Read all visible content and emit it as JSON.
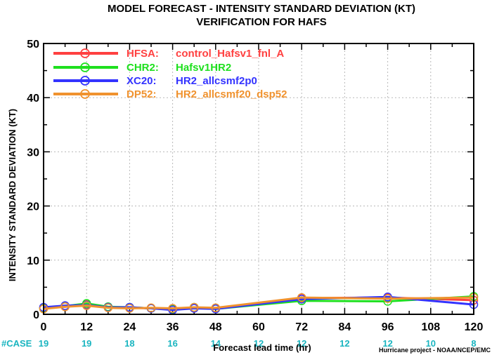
{
  "chart_data": {
    "type": "line",
    "title": "MODEL FORECAST - INTENSITY STANDARD DEVIATION (KT)",
    "subtitle": "VERIFICATION FOR HAFS",
    "xlabel": "Forecast lead time (hr)",
    "ylabel": "INTENSITY STANDARD DEVIATION (KT)",
    "xlim": [
      0,
      120
    ],
    "ylim": [
      0,
      50
    ],
    "x_ticks": [
      "0",
      "12",
      "24",
      "36",
      "48",
      "60",
      "72",
      "84",
      "96",
      "108",
      "120"
    ],
    "y_ticks": [
      "0",
      "10",
      "20",
      "30",
      "40",
      "50"
    ],
    "grid": true,
    "legend_position": "top-left",
    "case_label": "#CASE",
    "case_counts": [
      {
        "x": 0,
        "n": "19"
      },
      {
        "x": 12,
        "n": "19"
      },
      {
        "x": 24,
        "n": "18"
      },
      {
        "x": 36,
        "n": "16"
      },
      {
        "x": 48,
        "n": "14"
      },
      {
        "x": 60,
        "n": "12"
      },
      {
        "x": 72,
        "n": "12"
      },
      {
        "x": 84,
        "n": "12"
      },
      {
        "x": 96,
        "n": "12"
      },
      {
        "x": 108,
        "n": "10"
      },
      {
        "x": 120,
        "n": "8"
      }
    ],
    "credit": "Hurricane project - NOAA/NCEP/EMC",
    "series": [
      {
        "name": "HFSA:",
        "desc": "control_Hafsv1_fnl_A",
        "color": "#ff4040",
        "x": [
          0,
          6,
          12,
          18,
          24,
          30,
          36,
          42,
          48,
          72,
          96,
          120
        ],
        "y": [
          1.2,
          1.4,
          1.8,
          1.3,
          1.2,
          1.1,
          1.0,
          1.2,
          1.1,
          3.0,
          3.1,
          2.6
        ]
      },
      {
        "name": "CHR2:",
        "desc": "Hafsv1HR2",
        "color": "#1ee01e",
        "x": [
          0,
          6,
          12,
          18,
          24,
          30,
          36,
          42,
          48,
          72,
          96,
          120
        ],
        "y": [
          1.1,
          1.5,
          2.0,
          1.4,
          1.3,
          1.1,
          0.9,
          1.3,
          1.0,
          2.5,
          2.4,
          3.3
        ]
      },
      {
        "name": "XC20:",
        "desc": "HR2_allcsmf2p0",
        "color": "#3333ff",
        "x": [
          0,
          6,
          12,
          18,
          24,
          30,
          36,
          42,
          48,
          72,
          96,
          120
        ],
        "y": [
          1.3,
          1.6,
          1.7,
          1.3,
          1.3,
          1.1,
          0.8,
          1.1,
          1.0,
          2.8,
          3.2,
          1.8
        ]
      },
      {
        "name": "DP52:",
        "desc": "HR2_allcsmf20_dsp52",
        "color": "#f0922e",
        "x": [
          0,
          6,
          12,
          18,
          24,
          30,
          36,
          42,
          48,
          72,
          96,
          120
        ],
        "y": [
          1.0,
          1.4,
          1.6,
          1.2,
          1.1,
          1.2,
          1.1,
          1.3,
          1.2,
          3.1,
          2.9,
          3.1
        ]
      }
    ]
  }
}
